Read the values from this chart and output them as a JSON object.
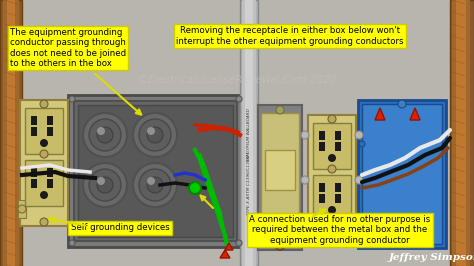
{
  "bg_color": "#1a1a1a",
  "wall_bg": "#b8b4ae",
  "wood_dark": "#8b5a2b",
  "wood_mid": "#a0682a",
  "wood_light": "#c07830",
  "metal_box_outer": "#7a7a7a",
  "metal_box_inner": "#666666",
  "metal_box_deep": "#585858",
  "knockout_outer": "#707070",
  "knockout_mid": "#5a5a5a",
  "knockout_inner": "#4a4a4a",
  "outlet_body": "#d4c87a",
  "outlet_face": "#c8bc6e",
  "outlet_hole": "#2a2a2a",
  "outlet_screw": "#b8a860",
  "switch_plate": "#909090",
  "switch_face": "#d0c880",
  "switch_toggle": "#e0d890",
  "blue_box": "#2a6fbb",
  "blue_box_inner": "#3a80cc",
  "conduit_color": "#a8a8a8",
  "annotation_bg": "#ffff00",
  "annotation_border": "#cccc00",
  "watermark_text": "©ElectricalLicenseRenewal.Com 2020",
  "watermark_color": "#c8c8c8",
  "watermark_alpha": 0.5,
  "sig_text": "Jeffrey Simpson",
  "ann1": "The equipment grounding\nconductor passing through\ndoes not need to be joined\nto the others in the box",
  "ann2": "Removing the receptacle in either box below won't\ninterrupt the other equipment grounding conductors",
  "ann3": "Self grounding devices",
  "ann4": "A connection used for no other purpose is\nrequired between the metal box and the\nequipment grounding conductor",
  "green": "#00bb00",
  "red": "#cc2200",
  "black": "#111111",
  "white": "#e8e8e8",
  "blue_wire": "#2233cc",
  "brown": "#8b4010",
  "yellow": "#dddd00",
  "figsize": [
    4.74,
    2.66
  ],
  "dpi": 100
}
